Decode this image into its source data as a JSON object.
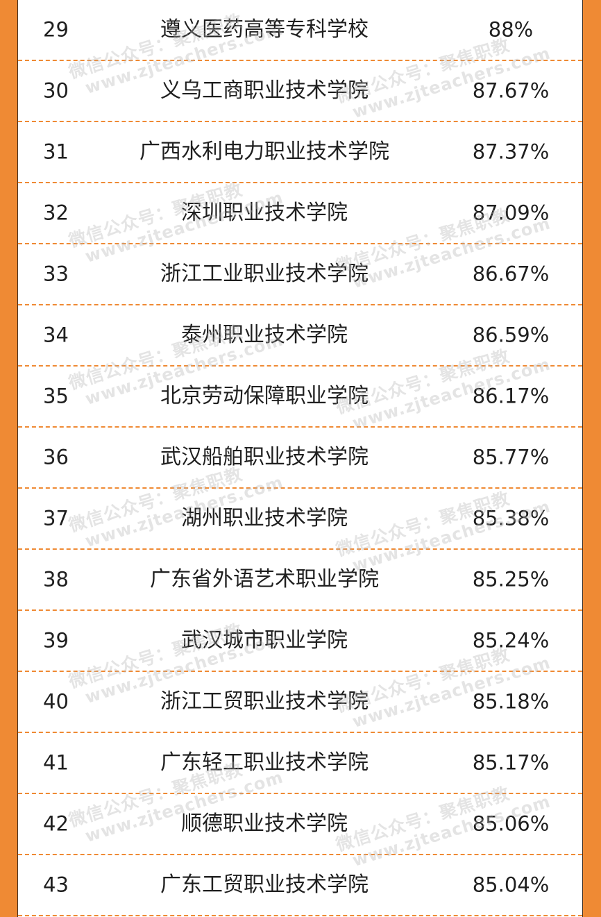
{
  "rows": [
    {
      "rank": "29",
      "school": "遵义医药高等专科学校",
      "rate": "88%"
    },
    {
      "rank": "30",
      "school": "义乌工商职业技术学院",
      "rate": "87.67%"
    },
    {
      "rank": "31",
      "school": "广西水利电力职业技术学院",
      "rate": "87.37%"
    },
    {
      "rank": "32",
      "school": "深圳职业技术学院",
      "rate": "87.09%"
    },
    {
      "rank": "33",
      "school": "浙江工业职业技术学院",
      "rate": "86.67%"
    },
    {
      "rank": "34",
      "school": "泰州职业技术学院",
      "rate": "86.59%"
    },
    {
      "rank": "35",
      "school": "北京劳动保障职业学院",
      "rate": "86.17%"
    },
    {
      "rank": "36",
      "school": "武汉船舶职业技术学院",
      "rate": "85.77%"
    },
    {
      "rank": "37",
      "school": "湖州职业技术学院",
      "rate": "85.38%"
    },
    {
      "rank": "38",
      "school": "广东省外语艺术职业学院",
      "rate": "85.25%"
    },
    {
      "rank": "39",
      "school": "武汉城市职业学院",
      "rate": "85.24%"
    },
    {
      "rank": "40",
      "school": "浙江工贸职业技术学院",
      "rate": "85.18%"
    },
    {
      "rank": "41",
      "school": "广东轻工职业技术学院",
      "rate": "85.17%"
    },
    {
      "rank": "42",
      "school": "顺德职业技术学院",
      "rate": "85.06%"
    },
    {
      "rank": "43",
      "school": "广东工贸职业技术学院",
      "rate": "85.04%"
    }
  ],
  "watermark": {
    "line1": "微信公众号：聚焦职教",
    "line2": "www.zjteachers.com"
  },
  "colors": {
    "border_orange": "#ef8a34",
    "text": "#1f1f1f",
    "watermark": "#b4b4b4"
  }
}
